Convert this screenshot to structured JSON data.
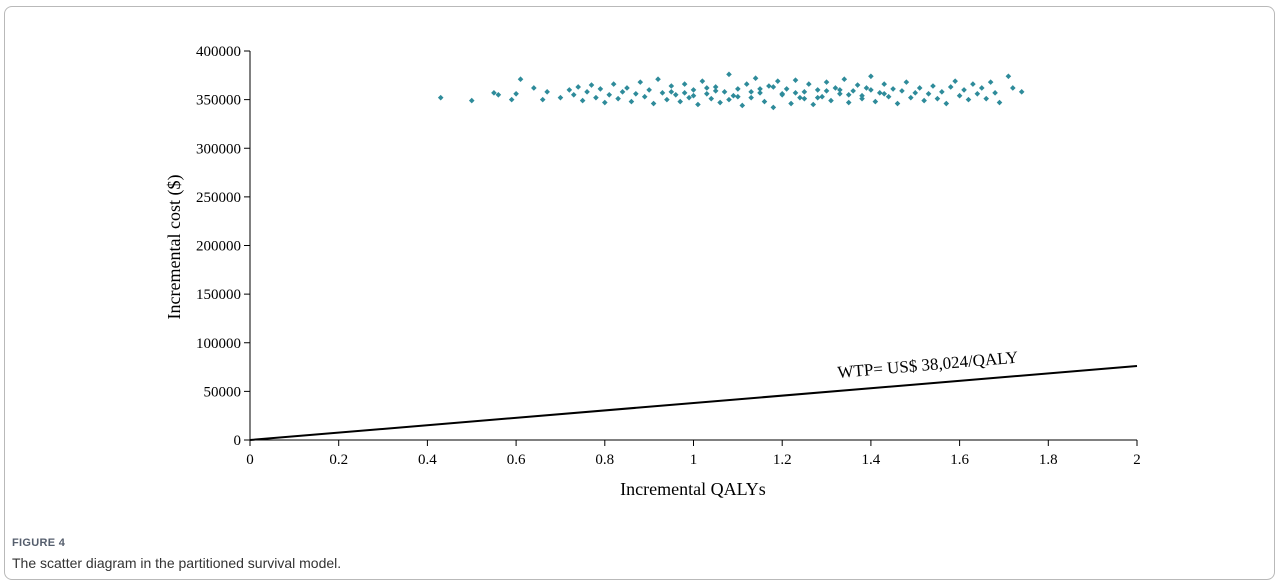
{
  "figure": {
    "label": "FIGURE 4",
    "caption": "The scatter diagram in the partitioned survival model."
  },
  "chart_data": {
    "type": "scatter",
    "xlabel": "Incremental QALYs",
    "ylabel": "Incremental cost ($)",
    "xlim": [
      0,
      2
    ],
    "ylim": [
      0,
      400000
    ],
    "x_ticks": [
      "0",
      "0.2",
      "0.4",
      "0.6",
      "0.8",
      "1",
      "1.2",
      "1.4",
      "1.6",
      "1.8",
      "2"
    ],
    "y_ticks": [
      "0",
      "50000",
      "100000",
      "150000",
      "200000",
      "250000",
      "300000",
      "350000",
      "400000"
    ],
    "grid": false,
    "marker_color": "#2e8b9a",
    "line_color": "#000000",
    "wtp_line": {
      "label": "WTP= US$ 38,024/QALY",
      "slope": 38024,
      "x": [
        0,
        2
      ],
      "y": [
        0,
        76048
      ]
    },
    "series": [
      {
        "points": [
          [
            0.43,
            352000
          ],
          [
            0.5,
            349000
          ],
          [
            0.55,
            357000
          ],
          [
            0.56,
            355000
          ],
          [
            0.59,
            350000
          ],
          [
            0.6,
            356000
          ],
          [
            0.61,
            371000
          ],
          [
            0.64,
            362000
          ],
          [
            0.66,
            350000
          ],
          [
            0.67,
            358000
          ],
          [
            0.7,
            352000
          ],
          [
            0.72,
            360000
          ],
          [
            0.73,
            355000
          ],
          [
            0.74,
            363000
          ],
          [
            0.75,
            349000
          ],
          [
            0.76,
            358000
          ],
          [
            0.77,
            365000
          ],
          [
            0.78,
            352000
          ],
          [
            0.79,
            361000
          ],
          [
            0.8,
            347000
          ],
          [
            0.81,
            355000
          ],
          [
            0.82,
            366000
          ],
          [
            0.83,
            351000
          ],
          [
            0.84,
            358000
          ],
          [
            0.85,
            362000
          ],
          [
            0.86,
            348000
          ],
          [
            0.87,
            356000
          ],
          [
            0.88,
            368000
          ],
          [
            0.89,
            353000
          ],
          [
            0.9,
            360000
          ],
          [
            0.91,
            346000
          ],
          [
            0.92,
            371000
          ],
          [
            0.93,
            357000
          ],
          [
            0.94,
            350000
          ],
          [
            0.95,
            364000
          ],
          [
            0.96,
            355000
          ],
          [
            0.97,
            348000
          ],
          [
            0.98,
            366000
          ],
          [
            0.99,
            352000
          ],
          [
            1.0,
            360000
          ],
          [
            1.01,
            345000
          ],
          [
            1.02,
            369000
          ],
          [
            1.03,
            356000
          ],
          [
            1.04,
            351000
          ],
          [
            1.05,
            363000
          ],
          [
            1.06,
            347000
          ],
          [
            1.07,
            358000
          ],
          [
            1.08,
            376000
          ],
          [
            1.09,
            354000
          ],
          [
            1.1,
            361000
          ],
          [
            1.11,
            344000
          ],
          [
            1.12,
            366000
          ],
          [
            1.13,
            352000
          ],
          [
            1.14,
            372000
          ],
          [
            1.15,
            357000
          ],
          [
            1.16,
            348000
          ],
          [
            1.17,
            364000
          ],
          [
            1.18,
            342000
          ],
          [
            1.19,
            369000
          ],
          [
            1.2,
            355000
          ],
          [
            1.21,
            361000
          ],
          [
            1.22,
            346000
          ],
          [
            1.23,
            370000
          ],
          [
            1.24,
            352000
          ],
          [
            1.25,
            358000
          ],
          [
            1.26,
            366000
          ],
          [
            1.27,
            345000
          ],
          [
            1.28,
            360000
          ],
          [
            1.29,
            353000
          ],
          [
            1.3,
            368000
          ],
          [
            1.31,
            349000
          ],
          [
            1.32,
            362000
          ],
          [
            1.33,
            356000
          ],
          [
            1.34,
            371000
          ],
          [
            1.35,
            347000
          ],
          [
            1.36,
            359000
          ],
          [
            1.37,
            365000
          ],
          [
            1.38,
            351000
          ],
          [
            1.39,
            362000
          ],
          [
            1.4,
            374000
          ],
          [
            1.41,
            348000
          ],
          [
            1.42,
            357000
          ],
          [
            1.43,
            366000
          ],
          [
            1.44,
            353000
          ],
          [
            1.45,
            361000
          ],
          [
            1.46,
            346000
          ],
          [
            1.47,
            359000
          ],
          [
            1.48,
            368000
          ],
          [
            1.49,
            352000
          ],
          [
            1.5,
            357000
          ],
          [
            1.51,
            362000
          ],
          [
            1.52,
            349000
          ],
          [
            1.53,
            356000
          ],
          [
            1.54,
            364000
          ],
          [
            1.55,
            351000
          ],
          [
            1.56,
            358000
          ],
          [
            1.57,
            346000
          ],
          [
            1.58,
            363000
          ],
          [
            1.59,
            369000
          ],
          [
            1.6,
            354000
          ],
          [
            1.61,
            360000
          ],
          [
            1.62,
            350000
          ],
          [
            1.63,
            366000
          ],
          [
            1.64,
            356000
          ],
          [
            1.65,
            362000
          ],
          [
            1.66,
            351000
          ],
          [
            1.67,
            368000
          ],
          [
            1.68,
            357000
          ],
          [
            1.69,
            347000
          ],
          [
            1.71,
            374000
          ],
          [
            1.72,
            362000
          ],
          [
            1.74,
            358000
          ],
          [
            0.95,
            358000
          ],
          [
            1.0,
            354000
          ],
          [
            1.05,
            359000
          ],
          [
            1.1,
            353000
          ],
          [
            1.15,
            361000
          ],
          [
            1.2,
            356000
          ],
          [
            1.25,
            351000
          ],
          [
            1.3,
            359000
          ],
          [
            1.35,
            355000
          ],
          [
            1.4,
            360000
          ],
          [
            0.98,
            357000
          ],
          [
            1.03,
            362000
          ],
          [
            1.08,
            350000
          ],
          [
            1.13,
            358000
          ],
          [
            1.18,
            363000
          ],
          [
            1.23,
            357000
          ],
          [
            1.28,
            352000
          ],
          [
            1.33,
            360000
          ],
          [
            1.38,
            354000
          ],
          [
            1.43,
            356000
          ]
        ]
      }
    ]
  }
}
